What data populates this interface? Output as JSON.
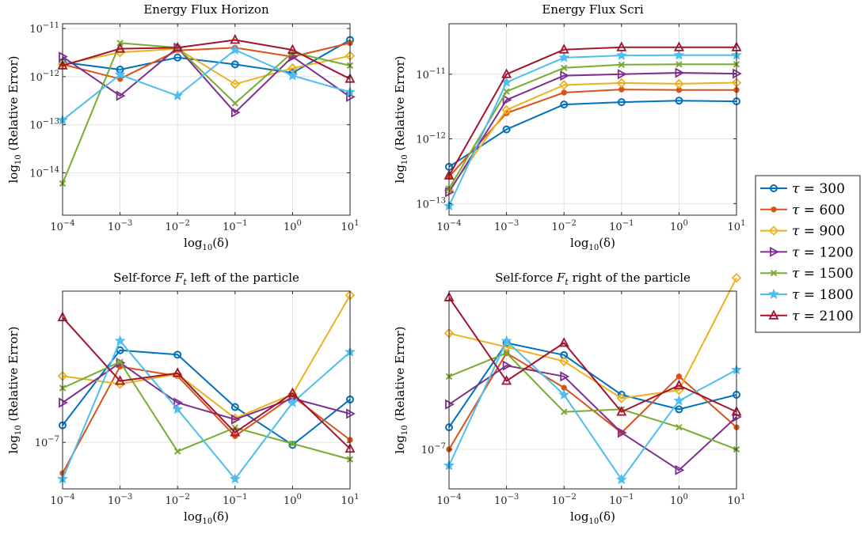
{
  "legend": {
    "placement": "right",
    "entries": [
      "τ = 300",
      "τ = 600",
      "τ = 900",
      "τ = 1200",
      "τ = 1500",
      "τ = 1800",
      "τ = 2100"
    ]
  },
  "series_styles": [
    {
      "color": "#0072BD",
      "marker": "circle"
    },
    {
      "color": "#D95319",
      "marker": "dot"
    },
    {
      "color": "#EDB120",
      "marker": "diamond"
    },
    {
      "color": "#7E2F8E",
      "marker": "triangle-right"
    },
    {
      "color": "#77AC30",
      "marker": "x"
    },
    {
      "color": "#4DBEEE",
      "marker": "star"
    },
    {
      "color": "#A2142F",
      "marker": "triangle-up"
    }
  ],
  "chart_data": [
    {
      "type": "line",
      "title": "Energy Flux Horizon",
      "xlabel": "log10(δ)",
      "ylabel": "log10 (Relative Error)",
      "xscale": "log",
      "yscale": "log",
      "xlim_exp": [
        -4,
        1
      ],
      "ylim_exp": [
        -14.88,
        -10.9
      ],
      "xtick_exps": [
        -4,
        -3,
        -2,
        -1,
        0,
        1
      ],
      "ytick_exps": [
        -14,
        -13,
        -12,
        -11
      ],
      "grid": true,
      "x": [
        0.0001,
        0.001,
        0.01,
        0.1,
        1,
        10
      ],
      "series": [
        {
          "name": "τ = 300",
          "values": [
            2e-12,
            1.4e-12,
            2.5e-12,
            1.8e-12,
            1.2e-12,
            5.8e-12
          ]
        },
        {
          "name": "τ = 600",
          "values": [
            1.8e-12,
            9e-13,
            3.5e-12,
            4e-12,
            2.6e-12,
            5e-12
          ]
        },
        {
          "name": "τ = 900",
          "values": [
            1.8e-12,
            3.2e-12,
            3.8e-12,
            7e-13,
            1.5e-12,
            2.7e-12
          ]
        },
        {
          "name": "τ = 1200",
          "values": [
            2.6e-12,
            4e-13,
            4e-12,
            1.8e-13,
            2.6e-12,
            3.8e-13
          ]
        },
        {
          "name": "τ = 1500",
          "values": [
            6e-15,
            5e-12,
            4e-12,
            2.8e-13,
            3.2e-12,
            1.7e-12
          ]
        },
        {
          "name": "τ = 1800",
          "values": [
            1.25e-13,
            1.1e-12,
            4e-13,
            3.6e-12,
            1.05e-12,
            4.8e-13
          ]
        },
        {
          "name": "τ = 2100",
          "values": [
            1.7e-12,
            3.8e-12,
            4e-12,
            5.8e-12,
            3.6e-12,
            9e-13
          ]
        }
      ]
    },
    {
      "type": "line",
      "title": "Energy Flux Scri",
      "xlabel": "log10(δ)",
      "ylabel": "log10 (Relative Error)",
      "xscale": "log",
      "yscale": "log",
      "xlim_exp": [
        -4,
        1
      ],
      "ylim_exp": [
        -13.18,
        -10.22
      ],
      "xtick_exps": [
        -4,
        -3,
        -2,
        -1,
        0,
        1
      ],
      "ytick_exps": [
        -13,
        -12,
        -11
      ],
      "grid": true,
      "x": [
        0.0001,
        0.001,
        0.01,
        0.1,
        1,
        10
      ],
      "series": [
        {
          "name": "τ = 300",
          "values": [
            3.7e-13,
            1.4e-12,
            3.4e-12,
            3.7e-12,
            3.9e-12,
            3.8e-12
          ]
        },
        {
          "name": "τ = 600",
          "values": [
            2.6e-13,
            2.5e-12,
            5.2e-12,
            5.8e-12,
            5.7e-12,
            5.7e-12
          ]
        },
        {
          "name": "τ = 900",
          "values": [
            1.6e-13,
            2.8e-12,
            6.8e-12,
            7.3e-12,
            7.1e-12,
            7.4e-12
          ]
        },
        {
          "name": "τ = 1200",
          "values": [
            1.5e-13,
            4e-12,
            9.5e-12,
            1e-11,
            1.05e-11,
            1.02e-11
          ]
        },
        {
          "name": "τ = 1500",
          "values": [
            1.7e-13,
            5.4e-12,
            1.25e-11,
            1.4e-11,
            1.42e-11,
            1.42e-11
          ]
        },
        {
          "name": "τ = 1800",
          "values": [
            9.2e-14,
            7.5e-12,
            1.8e-11,
            1.95e-11,
            1.97e-11,
            1.97e-11
          ]
        },
        {
          "name": "τ = 2100",
          "values": [
            2.7e-13,
            1e-11,
            2.4e-11,
            2.6e-11,
            2.6e-11,
            2.6e-11
          ]
        }
      ]
    },
    {
      "type": "line",
      "title": "Self-force F_t left of the particle",
      "xlabel": "log10(δ)",
      "ylabel": "log10 (Relative Error)",
      "xscale": "log",
      "yscale": "log",
      "xlim_exp": [
        -4,
        1
      ],
      "ylim_exp": [
        -7.08,
        -6.74
      ],
      "xtick_exps": [
        -4,
        -3,
        -2,
        -1,
        0,
        1
      ],
      "ytick_exps": [
        -7
      ],
      "grid": true,
      "x": [
        0.0001,
        0.001,
        0.01,
        0.1,
        1,
        10
      ],
      "series": [
        {
          "name": "τ = 300",
          "values": [
            1.07e-07,
            1.44e-07,
            1.415e-07,
            1.15e-07,
            9.9e-08,
            1.185e-07
          ]
        },
        {
          "name": "τ = 600",
          "values": [
            8.85e-08,
            1.35e-07,
            1.3e-07,
            1.025e-07,
            1.2e-07,
            1.01e-07
          ]
        },
        {
          "name": "τ = 900",
          "values": [
            1.3e-07,
            1.26e-07,
            1.31e-07,
            1.1e-07,
            1.21e-07,
            1.79e-07
          ]
        },
        {
          "name": "τ = 1200",
          "values": [
            1.17e-07,
            1.37e-07,
            1.17e-07,
            1.095e-07,
            1.19e-07,
            1.12e-07
          ]
        },
        {
          "name": "τ = 1500",
          "values": [
            1.24e-07,
            1.375e-07,
            9.65e-08,
            1.06e-07,
            9.95e-08,
            9.35e-08
          ]
        },
        {
          "name": "τ = 1800",
          "values": [
            8.65e-08,
            1.495e-07,
            1.14e-07,
            8.65e-08,
            1.17e-07,
            1.43e-07
          ]
        },
        {
          "name": "τ = 2100",
          "values": [
            1.64e-07,
            1.275e-07,
            1.315e-07,
            1.04e-07,
            1.215e-07,
            9.75e-08
          ]
        }
      ]
    },
    {
      "type": "line",
      "title": "Self-force F_t right of the particle",
      "xlabel": "log10(δ)",
      "ylabel": "log10 (Relative Error)",
      "xscale": "log",
      "yscale": "log",
      "xlim_exp": [
        -4,
        1
      ],
      "ylim_exp": [
        -7.06,
        -6.76
      ],
      "xtick_exps": [
        -4,
        -3,
        -2,
        -1,
        0,
        1
      ],
      "ytick_exps": [
        -7
      ],
      "grid": true,
      "x": [
        0.0001,
        0.001,
        0.01,
        0.1,
        1,
        10
      ],
      "series": [
        {
          "name": "τ = 300",
          "values": [
            1.08e-07,
            1.45e-07,
            1.39e-07,
            1.21e-07,
            1.15e-07,
            1.21e-07
          ]
        },
        {
          "name": "τ = 600",
          "values": [
            1e-07,
            1.4e-07,
            1.24e-07,
            1.06e-07,
            1.29e-07,
            1.08e-07
          ]
        },
        {
          "name": "τ = 900",
          "values": [
            1.5e-07,
            1.43e-07,
            1.36e-07,
            1.195e-07,
            1.23e-07,
            1.82e-07
          ]
        },
        {
          "name": "τ = 1200",
          "values": [
            1.17e-07,
            1.34e-07,
            1.29e-07,
            1.06e-07,
            9.3e-08,
            1.12e-07
          ]
        },
        {
          "name": "τ = 1500",
          "values": [
            1.29e-07,
            1.4e-07,
            1.14e-07,
            1.15e-07,
            1.08e-07,
            1e-07
          ]
        },
        {
          "name": "τ = 1800",
          "values": [
            9.45e-08,
            1.46e-07,
            1.21e-07,
            9e-08,
            1.185e-07,
            1.32e-07
          ]
        },
        {
          "name": "τ = 2100",
          "values": [
            1.7e-07,
            1.27e-07,
            1.45e-07,
            1.14e-07,
            1.25e-07,
            1.14e-07
          ]
        }
      ]
    }
  ]
}
